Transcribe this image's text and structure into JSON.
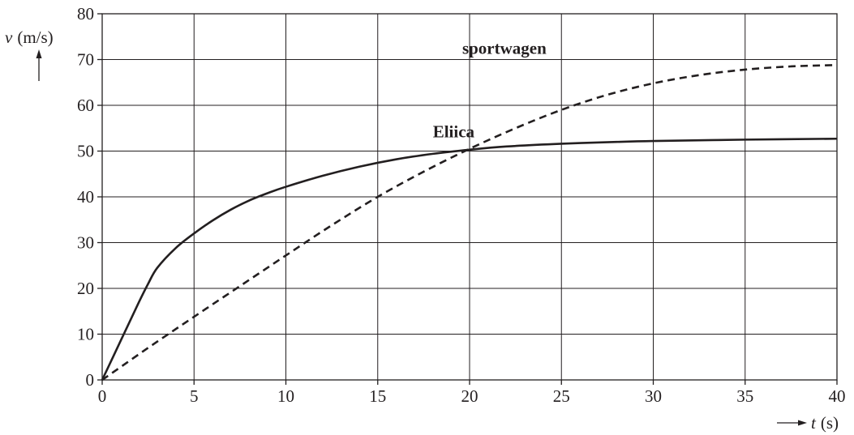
{
  "chart_data": {
    "type": "line",
    "title": "",
    "xlabel": "t (s)",
    "xlabel_var": "t",
    "xlabel_unit": "(s)",
    "ylabel": "v (m/s)",
    "ylabel_var": "v",
    "ylabel_unit": "(m/s)",
    "xlim": [
      0,
      40
    ],
    "ylim": [
      0,
      80
    ],
    "xticks": [
      0,
      5,
      10,
      15,
      20,
      25,
      30,
      35,
      40
    ],
    "yticks": [
      0,
      10,
      20,
      30,
      40,
      50,
      60,
      70,
      80
    ],
    "grid": true,
    "legend": "none",
    "line_color": "#231f20",
    "series": [
      {
        "name": "Eliica",
        "style": "solid",
        "label_at": [
          18,
          53
        ],
        "points": [
          [
            0,
            0
          ],
          [
            1,
            8.5
          ],
          [
            2,
            17
          ],
          [
            2.5,
            21
          ],
          [
            3,
            24.5
          ],
          [
            4,
            28.8
          ],
          [
            5,
            32
          ],
          [
            6,
            34.8
          ],
          [
            7,
            37.2
          ],
          [
            8,
            39.2
          ],
          [
            9,
            40.8
          ],
          [
            10,
            42.2
          ],
          [
            12,
            44.6
          ],
          [
            14,
            46.6
          ],
          [
            16,
            48.2
          ],
          [
            18,
            49.4
          ],
          [
            20,
            50.3
          ],
          [
            22,
            51
          ],
          [
            25,
            51.6
          ],
          [
            28,
            52
          ],
          [
            30,
            52.2
          ],
          [
            35,
            52.5
          ],
          [
            40,
            52.7
          ]
        ]
      },
      {
        "name": "sportwagen",
        "style": "dashed",
        "label_at": [
          19.6,
          71.2
        ],
        "points": [
          [
            0,
            0
          ],
          [
            2.5,
            7
          ],
          [
            5,
            13.8
          ],
          [
            7.5,
            20.5
          ],
          [
            10,
            27.2
          ],
          [
            12.5,
            33.8
          ],
          [
            15,
            40
          ],
          [
            17.5,
            45.5
          ],
          [
            20,
            50.5
          ],
          [
            22.5,
            55
          ],
          [
            25,
            59
          ],
          [
            27.5,
            62.3
          ],
          [
            30,
            64.8
          ],
          [
            32.5,
            66.6
          ],
          [
            35,
            67.8
          ],
          [
            37.5,
            68.5
          ],
          [
            40,
            68.8
          ]
        ]
      }
    ]
  }
}
